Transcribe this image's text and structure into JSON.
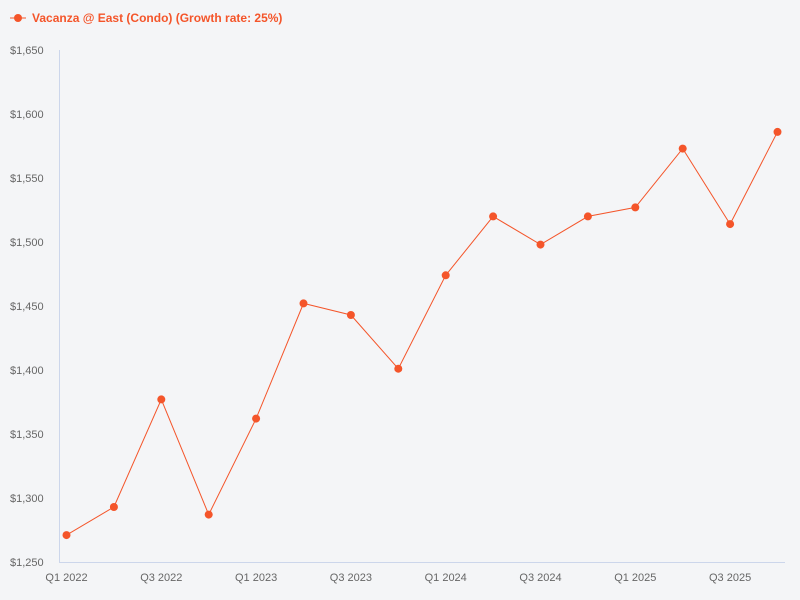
{
  "colors": {
    "series": "#f4552a",
    "axis": "#ccd6eb",
    "text": "#666666",
    "background": "#f4f5f7"
  },
  "legend": {
    "label": "Vacanza @ East (Condo) (Growth rate: 25%)"
  },
  "chart_data": {
    "type": "line",
    "x": [
      "Q1 2022",
      "Q2 2022",
      "Q3 2022",
      "Q4 2022",
      "Q1 2023",
      "Q2 2023",
      "Q3 2023",
      "Q4 2023",
      "Q1 2024",
      "Q2 2024",
      "Q3 2024",
      "Q4 2024",
      "Q1 2025",
      "Q2 2025",
      "Q3 2025",
      "Q4 2025"
    ],
    "x_tick_labels": [
      "Q1 2022",
      "Q3 2022",
      "Q1 2023",
      "Q3 2023",
      "Q1 2024",
      "Q3 2024",
      "Q1 2025",
      "Q3 2025"
    ],
    "series": [
      {
        "name": "Vacanza @ East (Condo) (Growth rate: 25%)",
        "values": [
          1271,
          1293,
          1377,
          1287,
          1362,
          1452,
          1443,
          1401,
          1474,
          1520,
          1498,
          1520,
          1527,
          1573,
          1514,
          1586
        ]
      }
    ],
    "yticks": [
      "$1,250",
      "$1,300",
      "$1,350",
      "$1,400",
      "$1,450",
      "$1,500",
      "$1,550",
      "$1,600",
      "$1,650"
    ],
    "ylim": [
      1250,
      1650
    ],
    "grid": false,
    "legend_position": "top-left"
  }
}
